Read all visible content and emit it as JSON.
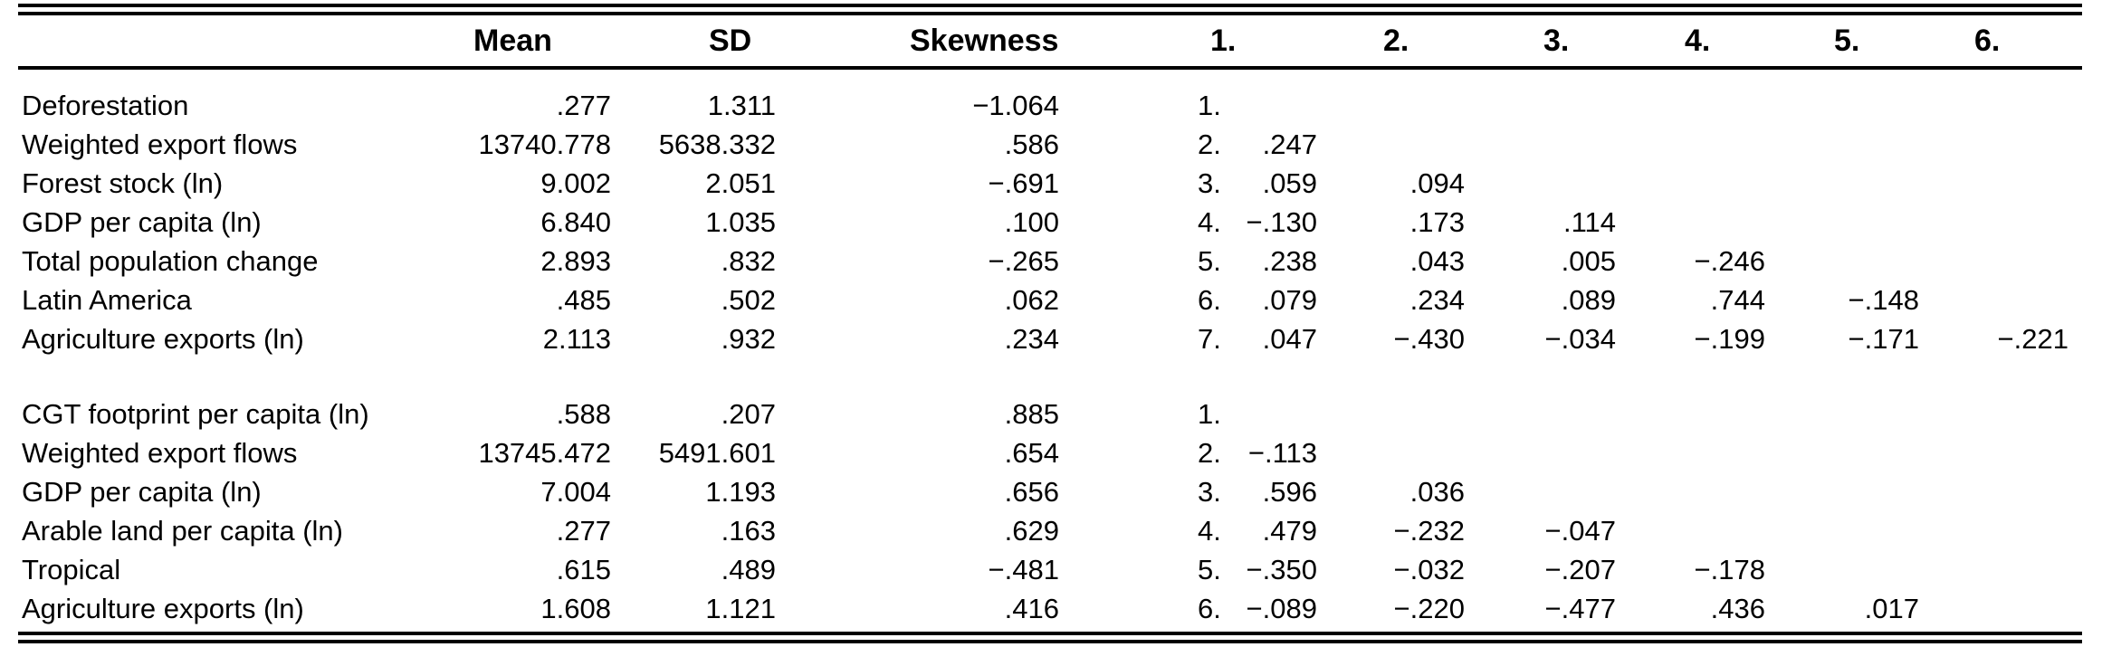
{
  "table": {
    "headers": {
      "mean": "Mean",
      "sd": "SD",
      "skewness": "Skewness",
      "corr": [
        "1.",
        "2.",
        "3.",
        "4.",
        "5.",
        "6."
      ]
    },
    "panels": [
      {
        "name": "deforestation-panel",
        "rows": [
          {
            "label": "Deforestation",
            "mean": ".277",
            "sd": "1.311",
            "skewness": "−1.064",
            "num": "1.",
            "corr": [
              "",
              "",
              "",
              "",
              "",
              ""
            ]
          },
          {
            "label": "Weighted export flows",
            "mean": "13740.778",
            "sd": "5638.332",
            "skewness": ".586",
            "num": "2.",
            "corr": [
              ".247",
              "",
              "",
              "",
              "",
              ""
            ]
          },
          {
            "label": "Forest stock (ln)",
            "mean": "9.002",
            "sd": "2.051",
            "skewness": "−.691",
            "num": "3.",
            "corr": [
              ".059",
              ".094",
              "",
              "",
              "",
              ""
            ]
          },
          {
            "label": "GDP per capita (ln)",
            "mean": "6.840",
            "sd": "1.035",
            "skewness": ".100",
            "num": "4.",
            "corr": [
              "−.130",
              ".173",
              ".114",
              "",
              "",
              ""
            ]
          },
          {
            "label": "Total population change",
            "mean": "2.893",
            "sd": ".832",
            "skewness": "−.265",
            "num": "5.",
            "corr": [
              ".238",
              ".043",
              ".005",
              "−.246",
              "",
              ""
            ]
          },
          {
            "label": "Latin America",
            "mean": ".485",
            "sd": ".502",
            "skewness": ".062",
            "num": "6.",
            "corr": [
              ".079",
              ".234",
              ".089",
              ".744",
              "−.148",
              ""
            ]
          },
          {
            "label": "Agriculture exports (ln)",
            "mean": "2.113",
            "sd": ".932",
            "skewness": ".234",
            "num": "7.",
            "corr": [
              ".047",
              "−.430",
              "−.034",
              "−.199",
              "−.171",
              "−.221"
            ]
          }
        ]
      },
      {
        "name": "cgt-footprint-panel",
        "rows": [
          {
            "label": "CGT footprint per capita (ln)",
            "mean": ".588",
            "sd": ".207",
            "skewness": ".885",
            "num": "1.",
            "corr": [
              "",
              "",
              "",
              "",
              "",
              ""
            ]
          },
          {
            "label": "Weighted export flows",
            "mean": "13745.472",
            "sd": "5491.601",
            "skewness": ".654",
            "num": "2.",
            "corr": [
              "−.113",
              "",
              "",
              "",
              "",
              ""
            ]
          },
          {
            "label": "GDP per capita (ln)",
            "mean": "7.004",
            "sd": "1.193",
            "skewness": ".656",
            "num": "3.",
            "corr": [
              ".596",
              ".036",
              "",
              "",
              "",
              ""
            ]
          },
          {
            "label": "Arable land per capita (ln)",
            "mean": ".277",
            "sd": ".163",
            "skewness": ".629",
            "num": "4.",
            "corr": [
              ".479",
              "−.232",
              "−.047",
              "",
              "",
              ""
            ]
          },
          {
            "label": "Tropical",
            "mean": ".615",
            "sd": ".489",
            "skewness": "−.481",
            "num": "5.",
            "corr": [
              "−.350",
              "−.032",
              "−.207",
              "−.178",
              "",
              ""
            ]
          },
          {
            "label": "Agriculture exports (ln)",
            "mean": "1.608",
            "sd": "1.121",
            "skewness": ".416",
            "num": "6.",
            "corr": [
              "−.089",
              "−.220",
              "−.477",
              ".436",
              ".017",
              ""
            ]
          }
        ]
      }
    ]
  },
  "colors": {
    "text": "#000000",
    "rule": "#000000",
    "background": "#ffffff"
  }
}
